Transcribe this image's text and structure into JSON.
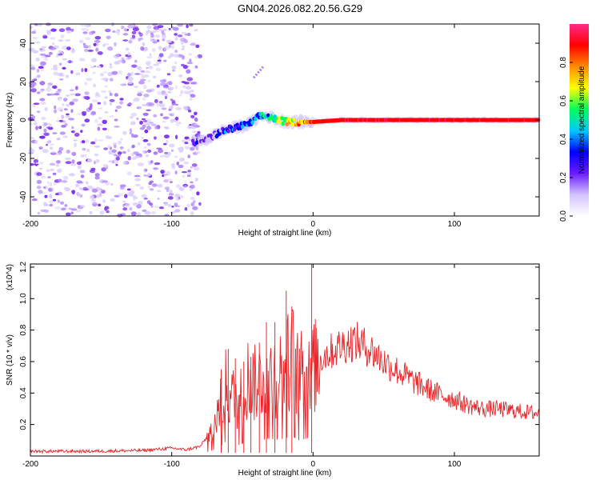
{
  "title": "GN04.2026.082.20.56.G29",
  "chart_data": [
    {
      "type": "heatmap",
      "name": "spectrogram",
      "xlabel": "Height of straight line (km)",
      "ylabel": "Frequency (Hz)",
      "xlim": [
        -200,
        160
      ],
      "ylim": [
        -50,
        50
      ],
      "xticks": [
        -200,
        -100,
        0,
        100
      ],
      "xtick_labels": [
        "-200",
        "-100",
        "0",
        "100"
      ],
      "yticks": [
        -40,
        -20,
        0,
        20,
        40
      ],
      "ytick_labels": [
        "-40",
        "-20",
        "0",
        "20",
        "40"
      ],
      "colorbar": {
        "label": "Normalized spectral amplitude",
        "range": [
          0.0,
          1.0
        ],
        "ticks": [
          0.0,
          0.2,
          0.4,
          0.6,
          0.8
        ],
        "tick_labels": [
          "0.0",
          "0.2",
          "0.4",
          "0.6",
          "0.8"
        ]
      },
      "noise_region_x": [
        -200,
        -80
      ],
      "signal_track": {
        "x": [
          -85,
          -75,
          -65,
          -55,
          -45,
          -38,
          -32,
          -25,
          -18,
          -10,
          0,
          20,
          60,
          100,
          160
        ],
        "y": [
          -12,
          -10,
          -6,
          -4,
          -2,
          2,
          2,
          0,
          -1,
          -1,
          -1,
          0,
          0,
          0,
          0
        ],
        "amplitude": [
          0.3,
          0.35,
          0.4,
          0.45,
          0.5,
          0.55,
          0.6,
          0.7,
          0.75,
          0.85,
          0.9,
          0.95,
          0.95,
          0.95,
          0.95
        ]
      },
      "spurious_streak": {
        "x": [
          -42,
          -35
        ],
        "y": [
          22,
          28
        ]
      }
    },
    {
      "type": "line",
      "name": "snr",
      "xlabel": "Height of straight line (km)",
      "ylabel": "SNR (10 * v/v)",
      "y_scale_label": "(x10^4)",
      "xlim": [
        -200,
        160
      ],
      "ylim": [
        0.0,
        1.22
      ],
      "xticks": [
        -200,
        -100,
        0,
        100
      ],
      "xtick_labels": [
        "-200",
        "-100",
        "0",
        "100"
      ],
      "yticks": [
        0.2,
        0.4,
        0.6,
        0.8,
        1.0,
        1.2
      ],
      "ytick_labels": [
        "0.2",
        "0.4",
        "0.6",
        "0.8",
        "1.0",
        "1.2"
      ],
      "color": "#e8272a",
      "series": [
        {
          "name": "SNR envelope",
          "x": [
            -200,
            -160,
            -120,
            -100,
            -90,
            -80,
            -75,
            -70,
            -66,
            -62,
            -58,
            -52,
            -46,
            -40,
            -36,
            -32,
            -26,
            -20,
            -15,
            -10,
            -5,
            -2,
            0,
            5,
            10,
            20,
            25,
            30,
            40,
            50,
            60,
            70,
            80,
            90,
            100,
            110,
            120,
            130,
            140,
            150,
            160
          ],
          "y": [
            0.03,
            0.03,
            0.035,
            0.05,
            0.04,
            0.06,
            0.12,
            0.2,
            0.3,
            0.45,
            0.38,
            0.35,
            0.5,
            0.45,
            0.5,
            0.55,
            0.52,
            0.55,
            0.65,
            0.5,
            0.55,
            0.6,
            0.55,
            0.62,
            0.65,
            0.7,
            0.72,
            0.73,
            0.68,
            0.6,
            0.54,
            0.48,
            0.43,
            0.39,
            0.36,
            0.32,
            0.3,
            0.3,
            0.29,
            0.28,
            0.27
          ]
        }
      ],
      "peaks": {
        "x": [
          -65,
          -60,
          -55,
          -49,
          -44,
          -38,
          -33,
          -27,
          -19,
          -15,
          -1
        ],
        "y": [
          0.55,
          0.68,
          0.62,
          0.6,
          0.63,
          0.72,
          0.85,
          0.85,
          1.05,
          0.95,
          1.22
        ]
      }
    }
  ],
  "colors": {
    "noise": "#8b40f0",
    "colormap": [
      "#ffffff",
      "#d2c2ff",
      "#6a1bff",
      "#0000ff",
      "#00c8ff",
      "#00ff5a",
      "#ffff00",
      "#ff8c00",
      "#ff0000",
      "#ff2a8a"
    ]
  }
}
